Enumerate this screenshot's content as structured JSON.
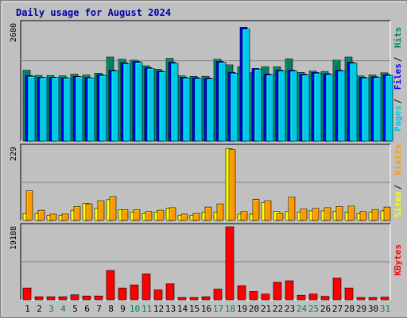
{
  "title": "Daily usage for August 2024",
  "colors": {
    "background": "#c0c0c0",
    "plot_bg": "#c0c0c0",
    "hits": "#00805c",
    "files": "#0000ff",
    "pages": "#00c8e8",
    "visits": "#ff9900",
    "sites": "#ffff00",
    "kbytes": "#ff0000",
    "title": "#0000aa",
    "weekend_day": "#00805c",
    "weekday": "#000000"
  },
  "chart_data": [
    {
      "type": "bar",
      "panel": "hits-files-pages",
      "legend_parts": [
        "Pages",
        "Files",
        "Hits"
      ],
      "ymax_label": "2680",
      "ylim": [
        0,
        2680
      ],
      "categories": [
        "1",
        "2",
        "3",
        "4",
        "5",
        "6",
        "7",
        "8",
        "9",
        "10",
        "11",
        "12",
        "13",
        "14",
        "15",
        "16",
        "17",
        "18",
        "19",
        "20",
        "21",
        "22",
        "23",
        "24",
        "25",
        "26",
        "27",
        "28",
        "29",
        "30",
        "31"
      ],
      "series": [
        {
          "name": "Hits",
          "values": [
            1620,
            1500,
            1500,
            1490,
            1530,
            1510,
            1550,
            1920,
            1870,
            1850,
            1720,
            1640,
            1890,
            1490,
            1480,
            1480,
            1870,
            1740,
            1700,
            1560,
            1700,
            1700,
            1880,
            1570,
            1600,
            1590,
            1850,
            1920,
            1490,
            1510,
            1560
          ]
        },
        {
          "name": "Files",
          "values": [
            1500,
            1460,
            1460,
            1450,
            1480,
            1450,
            1520,
            1620,
            1790,
            1820,
            1680,
            1600,
            1800,
            1460,
            1450,
            1440,
            1820,
            1570,
            2600,
            1660,
            1530,
            1620,
            1620,
            1530,
            1570,
            1540,
            1620,
            1800,
            1460,
            1470,
            1520
          ]
        },
        {
          "name": "Pages",
          "values": [
            1480,
            1450,
            1450,
            1440,
            1470,
            1440,
            1500,
            1600,
            1770,
            1800,
            1660,
            1580,
            1780,
            1440,
            1430,
            1420,
            1800,
            1550,
            2560,
            1640,
            1510,
            1600,
            1600,
            1510,
            1550,
            1520,
            1600,
            1780,
            1440,
            1450,
            1500
          ]
        }
      ]
    },
    {
      "type": "bar",
      "panel": "visits-sites",
      "legend_parts": [
        "Sites",
        "Visits"
      ],
      "ymax_label": "229",
      "ylim": [
        0,
        229
      ],
      "categories": [
        "1",
        "2",
        "3",
        "4",
        "5",
        "6",
        "7",
        "8",
        "9",
        "10",
        "11",
        "12",
        "13",
        "14",
        "15",
        "16",
        "17",
        "18",
        "19",
        "20",
        "21",
        "22",
        "23",
        "24",
        "25",
        "26",
        "27",
        "28",
        "29",
        "30",
        "31"
      ],
      "series": [
        {
          "name": "Sites",
          "values": [
            22,
            22,
            16,
            16,
            32,
            54,
            38,
            65,
            34,
            26,
            22,
            26,
            38,
            16,
            16,
            26,
            26,
            225,
            20,
            20,
            56,
            28,
            28,
            26,
            30,
            30,
            28,
            26,
            22,
            26,
            30
          ]
        },
        {
          "name": "Visits",
          "values": [
            93,
            32,
            20,
            20,
            44,
            52,
            62,
            75,
            34,
            34,
            28,
            32,
            40,
            20,
            22,
            42,
            52,
            222,
            28,
            66,
            62,
            22,
            74,
            36,
            38,
            40,
            44,
            45,
            28,
            34,
            42
          ]
        }
      ]
    },
    {
      "type": "bar",
      "panel": "kbytes",
      "legend_parts": [
        "KBytes"
      ],
      "ymax_label": "19188",
      "ylim": [
        0,
        19188
      ],
      "categories": [
        "1",
        "2",
        "3",
        "4",
        "5",
        "6",
        "7",
        "8",
        "9",
        "10",
        "11",
        "12",
        "13",
        "14",
        "15",
        "16",
        "17",
        "18",
        "19",
        "20",
        "21",
        "22",
        "23",
        "24",
        "25",
        "26",
        "27",
        "28",
        "29",
        "30",
        "31"
      ],
      "series": [
        {
          "name": "KBytes",
          "values": [
            3100,
            800,
            800,
            800,
            1300,
            1000,
            1000,
            7700,
            3100,
            3900,
            6800,
            2600,
            4200,
            600,
            600,
            800,
            2800,
            19188,
            3700,
            2200,
            1500,
            4600,
            5000,
            1200,
            1500,
            900,
            5700,
            3100,
            600,
            600,
            700
          ]
        }
      ]
    }
  ],
  "x_tick_weekend": [
    false,
    false,
    true,
    true,
    false,
    false,
    false,
    false,
    false,
    true,
    true,
    false,
    false,
    false,
    false,
    false,
    true,
    true,
    false,
    false,
    false,
    false,
    false,
    true,
    true,
    false,
    false,
    false,
    false,
    false,
    true
  ]
}
